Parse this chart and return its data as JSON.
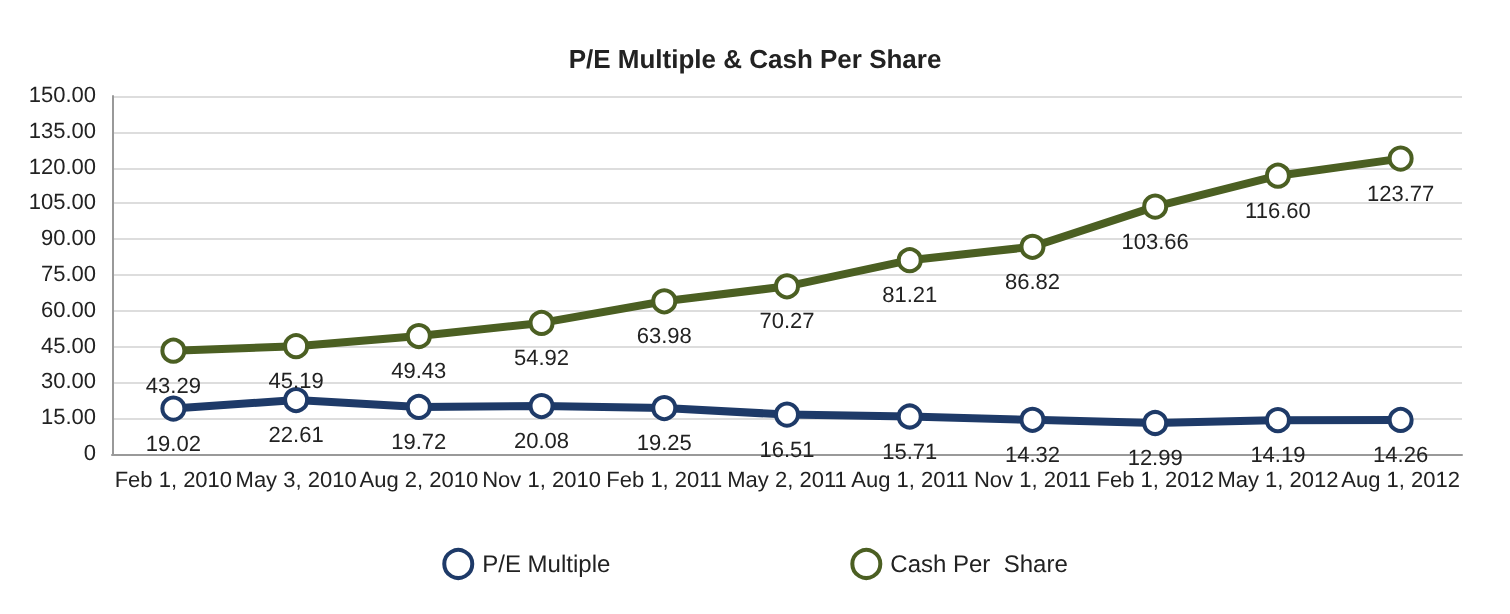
{
  "chart_data": {
    "type": "line",
    "title": "P/E Multiple & Cash Per Share",
    "categories": [
      "Feb 1, 2010",
      "May 3, 2010",
      "Aug 2, 2010",
      "Nov 1, 2010",
      "Feb 1, 2011",
      "May 2, 2011",
      "Aug 1, 2011",
      "Nov 1, 2011",
      "Feb 1, 2012",
      "May 1, 2012",
      "Aug 1, 2012"
    ],
    "series": [
      {
        "name": "P/E Multiple",
        "color": "#1e3a68",
        "values": [
          19.02,
          22.61,
          19.72,
          20.08,
          19.25,
          16.51,
          15.71,
          14.32,
          12.99,
          14.19,
          14.26
        ],
        "value_labels": [
          "19.02",
          "22.61",
          "19.72",
          "20.08",
          "19.25",
          "16.51",
          "15.71",
          "14.32",
          "12.99",
          "14.19",
          "14.26"
        ]
      },
      {
        "name": "Cash Per  Share",
        "color": "#4b5f22",
        "values": [
          43.29,
          45.19,
          49.43,
          54.92,
          63.98,
          70.27,
          81.21,
          86.82,
          103.66,
          116.6,
          123.77
        ],
        "value_labels": [
          "43.29",
          "45.19",
          "49.43",
          "54.92",
          "63.98",
          "70.27",
          "81.21",
          "86.82",
          "103.66",
          "116.60",
          "123.77"
        ]
      }
    ],
    "ylim": [
      0,
      150
    ],
    "yticks": [
      {
        "value": 0,
        "label": "0"
      },
      {
        "value": 15,
        "label": "15.00"
      },
      {
        "value": 30,
        "label": "30.00"
      },
      {
        "value": 45,
        "label": "45.00"
      },
      {
        "value": 60,
        "label": "60.00"
      },
      {
        "value": 75,
        "label": "75.00"
      },
      {
        "value": 90,
        "label": "90.00"
      },
      {
        "value": 105,
        "label": "105.00"
      },
      {
        "value": 120,
        "label": "120.00"
      },
      {
        "value": 135,
        "label": "135.00"
      },
      {
        "value": 150,
        "label": "150.00"
      }
    ],
    "grid": "y",
    "legend": "bottom",
    "marker": "circle",
    "line_style": "solid"
  }
}
